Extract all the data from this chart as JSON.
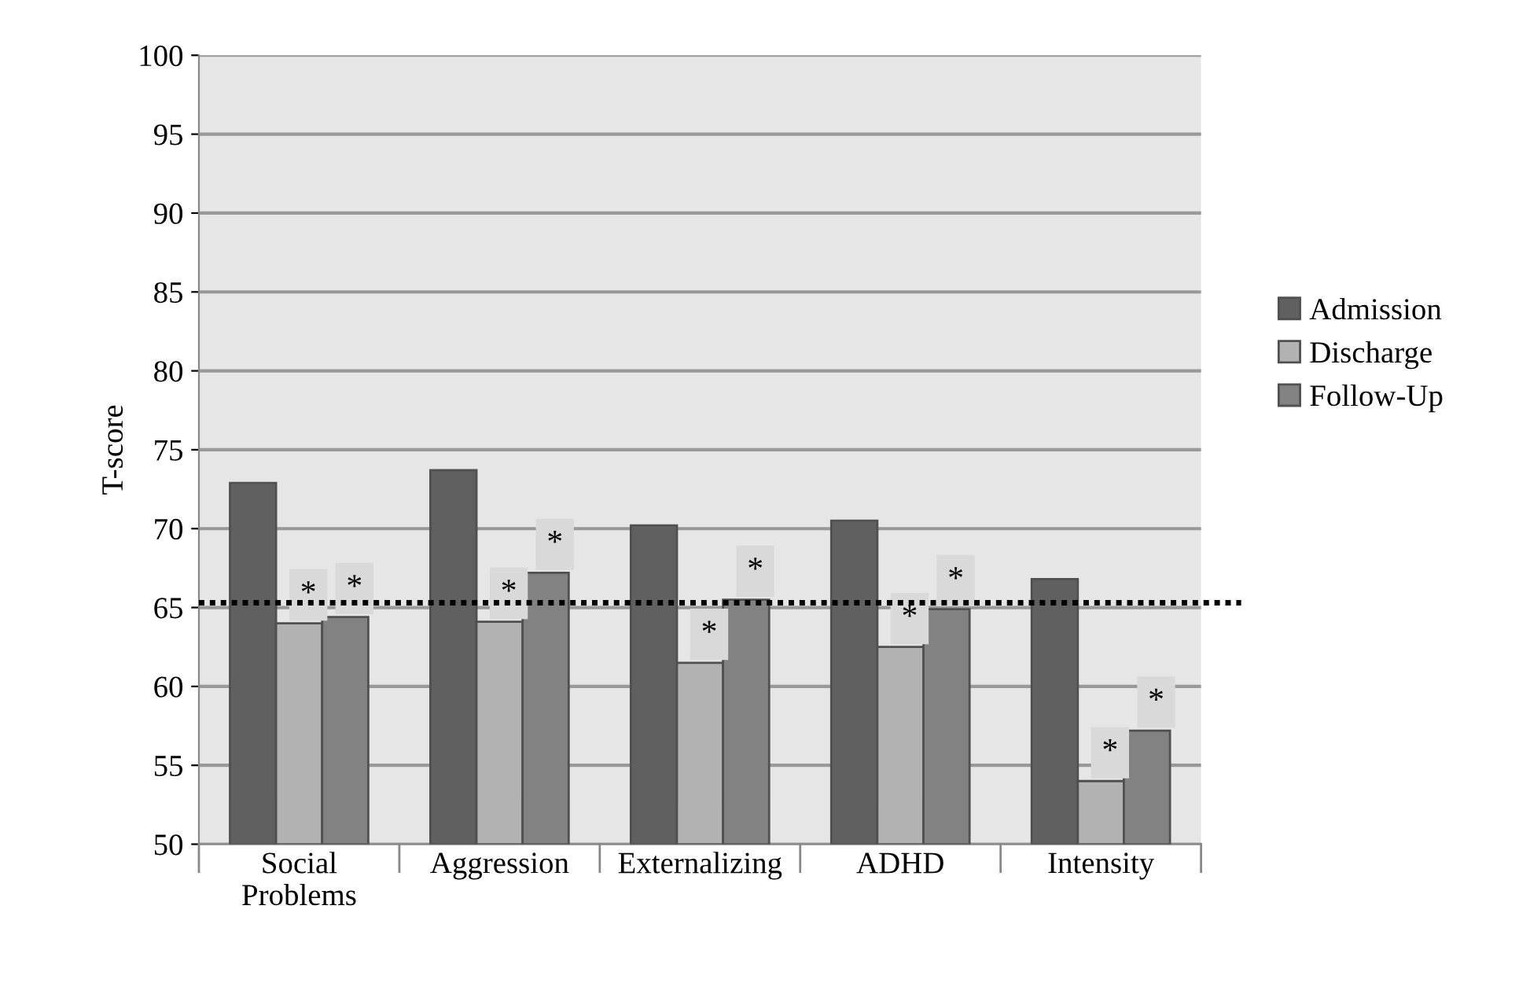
{
  "chart_data": {
    "type": "bar",
    "ylabel": "T-score",
    "categories": [
      "Social\nProblems",
      "Aggression",
      "Externalizing",
      "ADHD",
      "Intensity"
    ],
    "series": [
      {
        "name": "Admission",
        "color": "#606060",
        "values": [
          72.9,
          73.7,
          70.2,
          70.5,
          66.8
        ]
      },
      {
        "name": "Discharge",
        "color": "#b2b2b2",
        "values": [
          64.0,
          64.1,
          61.5,
          62.5,
          54.0
        ],
        "value_labels": [
          "*",
          "*",
          "*",
          "*",
          "*"
        ]
      },
      {
        "name": "Follow-Up",
        "color": "#828282",
        "values": [
          64.4,
          67.2,
          65.5,
          64.9,
          57.2
        ],
        "value_labels": [
          "*",
          "*",
          "*",
          "*",
          "*"
        ]
      }
    ],
    "ylim": [
      50,
      100
    ],
    "yticks": [
      50,
      55,
      60,
      65,
      70,
      75,
      80,
      85,
      90,
      95,
      100
    ],
    "grid": "y",
    "legend": "right",
    "ref_lines": [
      {
        "axis": "y",
        "value": 65.3,
        "line_style": "dotted",
        "color": "#000000"
      }
    ]
  }
}
